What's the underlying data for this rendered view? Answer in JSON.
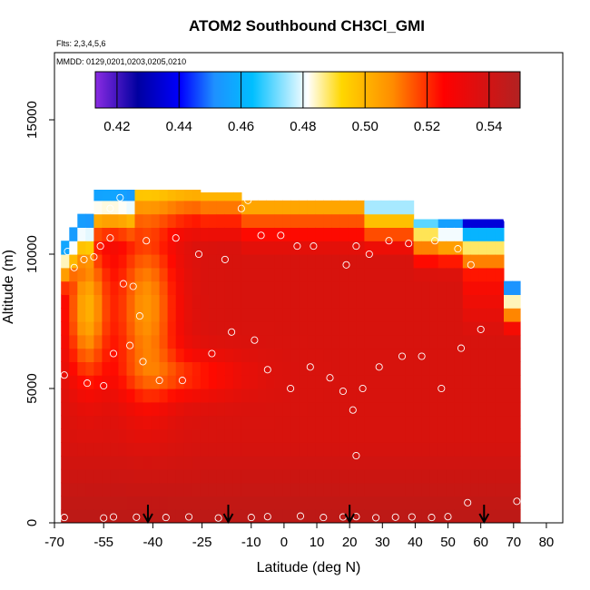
{
  "chart_data": {
    "type": "heatmap",
    "title": "ATOM2 Southbound CH3Cl_GMI",
    "flights_label": "Flts: 2,3,4,5,6",
    "dates_label": "MMDD: 0129,0201,0203,0205,0210",
    "xlabel": "Latitude (deg N)",
    "ylabel": "Altitude (m)",
    "xlim": [
      -70,
      85
    ],
    "ylim": [
      0,
      17500
    ],
    "x_ticks": [
      -70,
      -55,
      -40,
      -25,
      -10,
      0,
      10,
      20,
      30,
      40,
      50,
      60,
      70,
      80
    ],
    "x_tick_labels": [
      "-70",
      "-55",
      "-40",
      "-25",
      "-10",
      "0",
      "10",
      "20",
      "30",
      "40",
      "50",
      "60",
      "70",
      "80"
    ],
    "y_ticks": [
      0,
      5000,
      10000,
      15000
    ],
    "y_tick_labels": [
      "0",
      "5000",
      "10000",
      "15000"
    ],
    "colorbar": {
      "range": [
        0.413,
        0.55
      ],
      "ticks": [
        0.42,
        0.44,
        0.46,
        0.48,
        0.5,
        0.52,
        0.54
      ],
      "tick_labels": [
        "0.42",
        "0.44",
        "0.46",
        "0.48",
        "0.50",
        "0.52",
        "0.54"
      ],
      "colors": [
        "#8a2be2",
        "#0000a0",
        "#0000ff",
        "#1e90ff",
        "#00bfff",
        "#ffffff",
        "#ffd700",
        "#ff8c00",
        "#ff0000",
        "#b22222"
      ]
    },
    "arrows_latitude": [
      -41.5,
      -17,
      20,
      61
    ],
    "data_coverage": {
      "lat_min": -68,
      "lat_max": 71,
      "alt_max": 12300
    },
    "field_description": "Model CH3Cl gridded along flight track; low values (~0.43-0.50) near top edges and in southern midlatitude mid-troposphere, high values (~0.54) in lower troposphere and tropics",
    "sample_points": [
      {
        "lat": -67,
        "alt": 200
      },
      {
        "lat": -55,
        "alt": 180
      },
      {
        "lat": -52,
        "alt": 220
      },
      {
        "lat": -45,
        "alt": 210
      },
      {
        "lat": -36,
        "alt": 200
      },
      {
        "lat": -29,
        "alt": 220
      },
      {
        "lat": -20,
        "alt": 180
      },
      {
        "lat": -10,
        "alt": 200
      },
      {
        "lat": -5,
        "alt": 230
      },
      {
        "lat": 5,
        "alt": 250
      },
      {
        "lat": 12,
        "alt": 200
      },
      {
        "lat": 18,
        "alt": 220
      },
      {
        "lat": 22,
        "alt": 230
      },
      {
        "lat": 28,
        "alt": 190
      },
      {
        "lat": 34,
        "alt": 210
      },
      {
        "lat": 39,
        "alt": 220
      },
      {
        "lat": 45,
        "alt": 200
      },
      {
        "lat": 50,
        "alt": 230
      },
      {
        "lat": 56,
        "alt": 750
      },
      {
        "lat": 71,
        "alt": 800
      },
      {
        "lat": -66,
        "alt": 10100
      },
      {
        "lat": -64,
        "alt": 9500
      },
      {
        "lat": -61,
        "alt": 9800
      },
      {
        "lat": -58,
        "alt": 9900
      },
      {
        "lat": -56,
        "alt": 10300
      },
      {
        "lat": -53,
        "alt": 10600
      },
      {
        "lat": -53,
        "alt": 11700
      },
      {
        "lat": -50,
        "alt": 12100
      },
      {
        "lat": -49,
        "alt": 8900
      },
      {
        "lat": -46,
        "alt": 8800
      },
      {
        "lat": -44,
        "alt": 7700
      },
      {
        "lat": -42,
        "alt": 10500
      },
      {
        "lat": -33,
        "alt": 10600
      },
      {
        "lat": -26,
        "alt": 10000
      },
      {
        "lat": -18,
        "alt": 9800
      },
      {
        "lat": -13,
        "alt": 11700
      },
      {
        "lat": -11,
        "alt": 12000
      },
      {
        "lat": -7,
        "alt": 10700
      },
      {
        "lat": -1,
        "alt": 10700
      },
      {
        "lat": 4,
        "alt": 10300
      },
      {
        "lat": 9,
        "alt": 10300
      },
      {
        "lat": 19,
        "alt": 9600
      },
      {
        "lat": 22,
        "alt": 10300
      },
      {
        "lat": 26,
        "alt": 10000
      },
      {
        "lat": 32,
        "alt": 10500
      },
      {
        "lat": 38,
        "alt": 10400
      },
      {
        "lat": 46,
        "alt": 10500
      },
      {
        "lat": 53,
        "alt": 10200
      },
      {
        "lat": 57,
        "alt": 9600
      },
      {
        "lat": 68,
        "alt": 11300
      },
      {
        "lat": -67,
        "alt": 5500
      },
      {
        "lat": -60,
        "alt": 5200
      },
      {
        "lat": -55,
        "alt": 5100
      },
      {
        "lat": -52,
        "alt": 6300
      },
      {
        "lat": -47,
        "alt": 6600
      },
      {
        "lat": -43,
        "alt": 6000
      },
      {
        "lat": -38,
        "alt": 5300
      },
      {
        "lat": -31,
        "alt": 5300
      },
      {
        "lat": -22,
        "alt": 6300
      },
      {
        "lat": -16,
        "alt": 7100
      },
      {
        "lat": -9,
        "alt": 6800
      },
      {
        "lat": -5,
        "alt": 5700
      },
      {
        "lat": 2,
        "alt": 5000
      },
      {
        "lat": 8,
        "alt": 5800
      },
      {
        "lat": 14,
        "alt": 5400
      },
      {
        "lat": 18,
        "alt": 4900
      },
      {
        "lat": 21,
        "alt": 4200
      },
      {
        "lat": 24,
        "alt": 5000
      },
      {
        "lat": 29,
        "alt": 5800
      },
      {
        "lat": 36,
        "alt": 6200
      },
      {
        "lat": 42,
        "alt": 6200
      },
      {
        "lat": 48,
        "alt": 5000
      },
      {
        "lat": 54,
        "alt": 6500
      },
      {
        "lat": 60,
        "alt": 7200
      },
      {
        "lat": 22,
        "alt": 2500
      }
    ]
  }
}
